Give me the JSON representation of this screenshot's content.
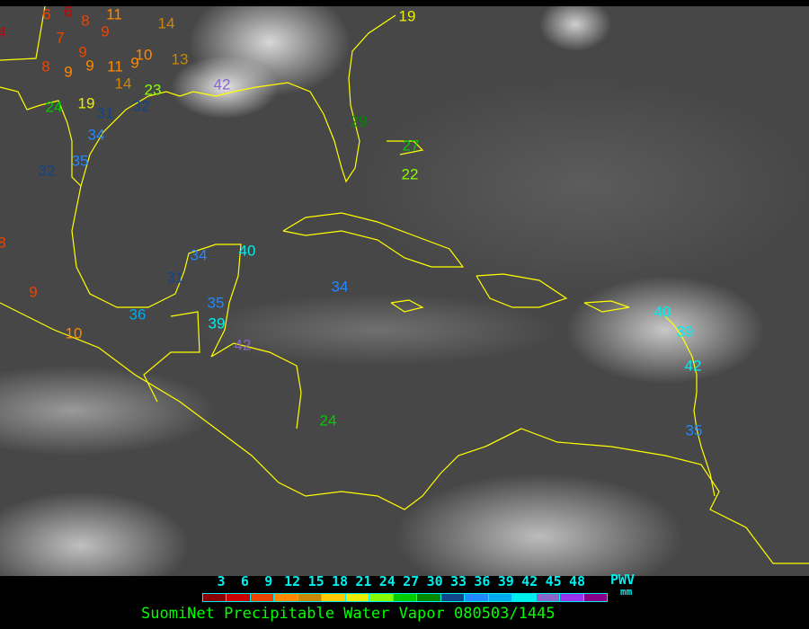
{
  "title": "SuomiNet Precipitable Water Vapor 080503/1445",
  "legend": {
    "unit_label": "PWV",
    "unit": "mm",
    "tick_labels": [
      "3",
      "6",
      "9",
      "12",
      "15",
      "18",
      "21",
      "24",
      "27",
      "30",
      "33",
      "36",
      "39",
      "42",
      "45",
      "48"
    ],
    "colors": [
      "#8b0000",
      "#cc0000",
      "#ee4400",
      "#ff8800",
      "#cc8800",
      "#ffcc00",
      "#eeee00",
      "#88ff00",
      "#00cc00",
      "#008800",
      "#114488",
      "#2288ff",
      "#00aaee",
      "#00eeee",
      "#8866cc",
      "#9933ee",
      "#880088"
    ]
  },
  "boundary_color": "#ffff00",
  "stations": [
    {
      "value": "6",
      "color": "#ee4400"
    },
    {
      "value": "6",
      "color": "#cc0000"
    },
    {
      "value": "11",
      "color": "#ff8800"
    },
    {
      "value": "14",
      "color": "#cc8800"
    },
    {
      "value": "4",
      "color": "#cc0000"
    },
    {
      "value": "8",
      "color": "#ee4400"
    },
    {
      "value": "7",
      "color": "#ee4400"
    },
    {
      "value": "9",
      "color": "#ee4400"
    },
    {
      "value": "9",
      "color": "#ee4400"
    },
    {
      "value": "10",
      "color": "#ff8800"
    },
    {
      "value": "13",
      "color": "#cc8800"
    },
    {
      "value": "8",
      "color": "#ee4400"
    },
    {
      "value": "9",
      "color": "#ff8800"
    },
    {
      "value": "9",
      "color": "#ff8800"
    },
    {
      "value": "11",
      "color": "#ff8800"
    },
    {
      "value": "9",
      "color": "#ff8800"
    },
    {
      "value": "14",
      "color": "#cc8800"
    },
    {
      "value": "23",
      "color": "#88ff00"
    },
    {
      "value": "42",
      "color": "#8866cc"
    },
    {
      "value": "24",
      "color": "#00cc00"
    },
    {
      "value": "19",
      "color": "#eeee00"
    },
    {
      "value": "31",
      "color": "#114488"
    },
    {
      "value": "32",
      "color": "#114488"
    },
    {
      "value": "34",
      "color": "#2288ff"
    },
    {
      "value": "35",
      "color": "#2288ff"
    },
    {
      "value": "32",
      "color": "#114488"
    },
    {
      "value": "19",
      "color": "#eeee00"
    },
    {
      "value": "29",
      "color": "#008800"
    },
    {
      "value": "27",
      "color": "#00cc00"
    },
    {
      "value": "22",
      "color": "#88ff00"
    },
    {
      "value": "8",
      "color": "#ee4400"
    },
    {
      "value": "9",
      "color": "#ee4400"
    },
    {
      "value": "10",
      "color": "#ff8800"
    },
    {
      "value": "34",
      "color": "#2288ff"
    },
    {
      "value": "40",
      "color": "#00eeee"
    },
    {
      "value": "31",
      "color": "#114488"
    },
    {
      "value": "36",
      "color": "#00aaee"
    },
    {
      "value": "35",
      "color": "#2288ff"
    },
    {
      "value": "39",
      "color": "#00eeee"
    },
    {
      "value": "42",
      "color": "#8866cc"
    },
    {
      "value": "34",
      "color": "#2288ff"
    },
    {
      "value": "24",
      "color": "#00cc00"
    },
    {
      "value": "40",
      "color": "#00eeee"
    },
    {
      "value": "39",
      "color": "#00eeee"
    },
    {
      "value": "42",
      "color": "#00eeee"
    },
    {
      "value": "35",
      "color": "#2288ff"
    }
  ]
}
